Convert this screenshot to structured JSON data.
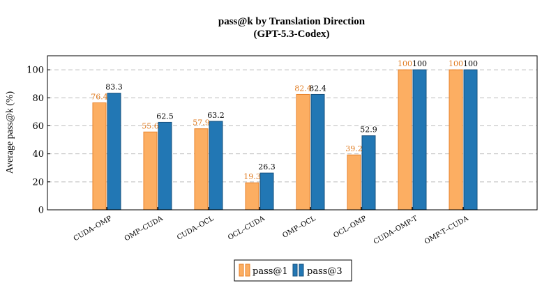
{
  "chart_data": {
    "type": "bar",
    "title_line1": "pass@k by Translation Direction",
    "title_line2": "(GPT-5.3-Codex)",
    "ylabel": "Average pass@k (%)",
    "xlabel": "",
    "ylim": [
      0,
      110
    ],
    "yticks": [
      0,
      20,
      40,
      60,
      80,
      100
    ],
    "grid": "horizontal dashed",
    "legend_position": "bottom-center",
    "categories": [
      "CUDA–OMP",
      "OMP–CUDA",
      "CUDA–OCL",
      "OCL–CUDA",
      "OMP–OCL",
      "OCL–OMP",
      "CUDA–OMP-T",
      "OMP-T–CUDA"
    ],
    "series": [
      {
        "name": "pass@1",
        "values": [
          76.4,
          55.6,
          57.9,
          19.3,
          82.4,
          39.2,
          100,
          100
        ],
        "labels": [
          "76.4",
          "55.6",
          "57.9",
          "19.3",
          "82.4",
          "39.2",
          "100",
          "100"
        ],
        "fill": "#FCAE62",
        "stroke": "#E8822A",
        "label_color": "#E07B20"
      },
      {
        "name": "pass@3",
        "values": [
          83.3,
          62.5,
          63.2,
          26.3,
          82.4,
          52.9,
          100,
          100
        ],
        "labels": [
          "83.3",
          "62.5",
          "63.2",
          "26.3",
          "82.4",
          "52.9",
          "100",
          "100"
        ],
        "fill": "#2277B4",
        "stroke": "#15507E",
        "label_color": "#000000"
      }
    ]
  }
}
